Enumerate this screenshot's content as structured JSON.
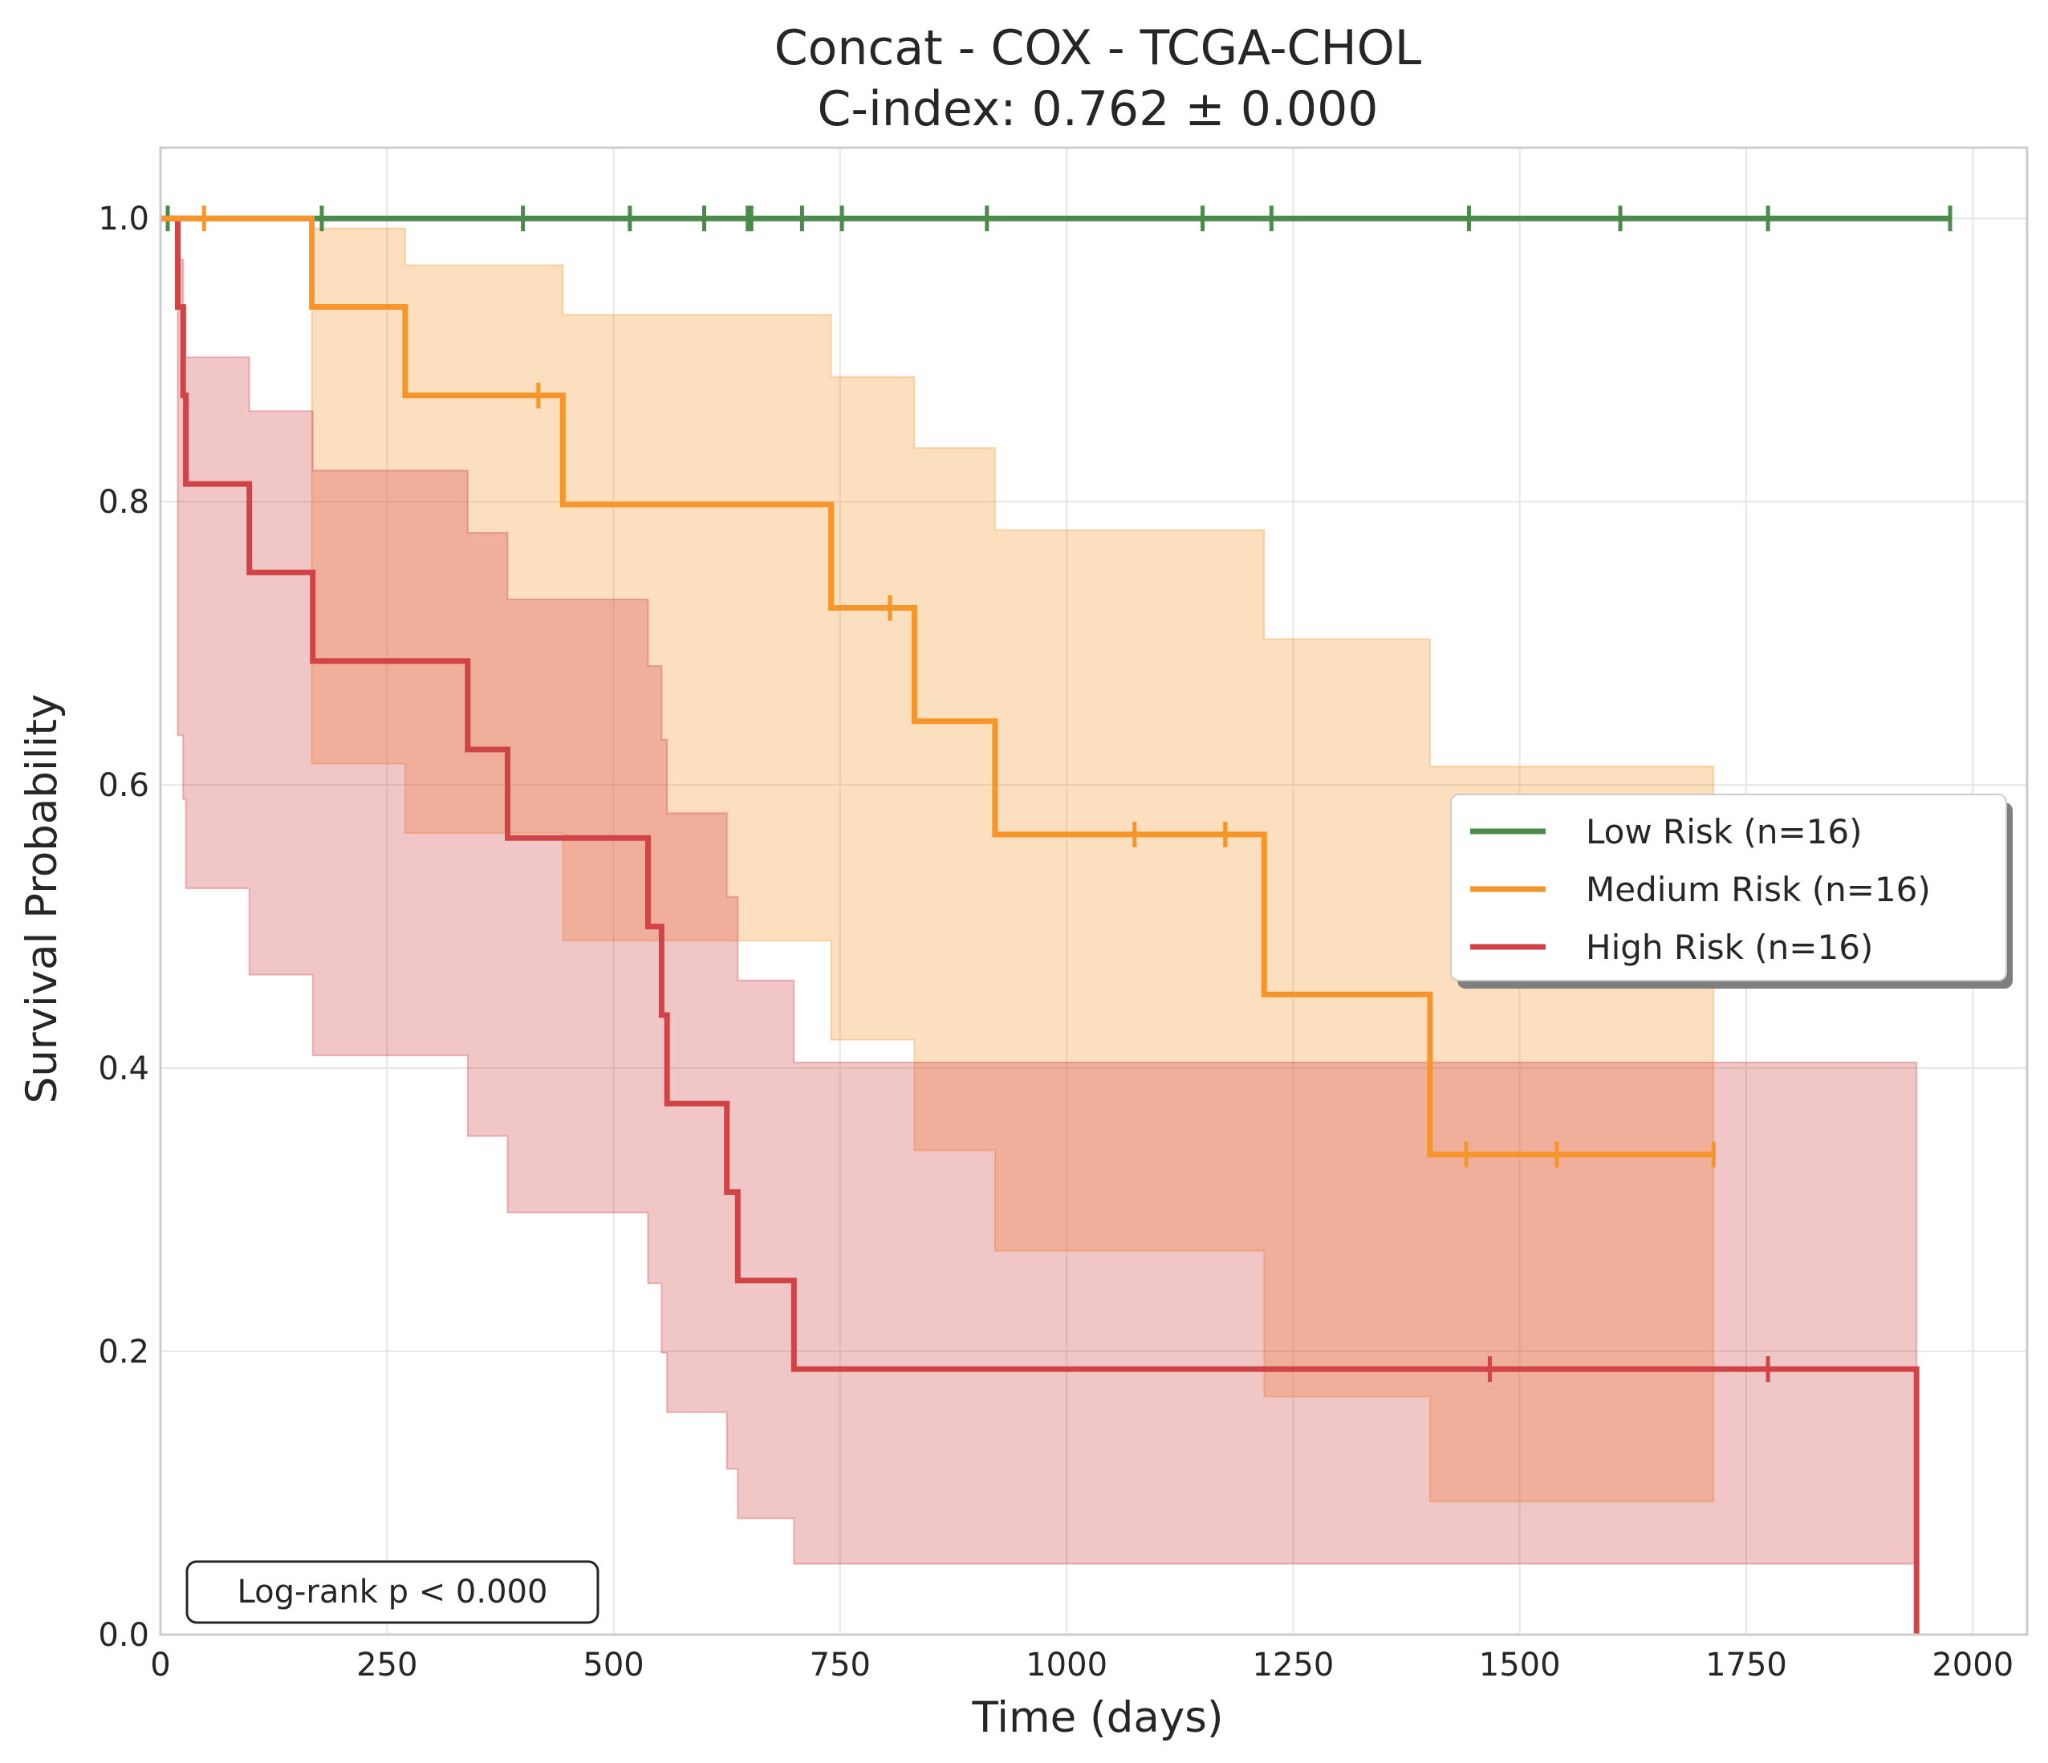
{
  "chart_data": {
    "type": "line",
    "subtype": "kaplan-meier",
    "title_lines": [
      "Concat - COX - TCGA-CHOL",
      "C-index: 0.762 ± 0.000"
    ],
    "xlabel": "Time (days)",
    "ylabel": "Survival Probability",
    "xlim": [
      0,
      2060
    ],
    "ylim": [
      0,
      1.05
    ],
    "xticks": [
      0,
      250,
      500,
      750,
      1000,
      1250,
      1500,
      1750,
      2000
    ],
    "xtick_labels": [
      "0",
      "250",
      "500",
      "750",
      "1000",
      "1250",
      "1500",
      "1750",
      "2000"
    ],
    "yticks": [
      0.0,
      0.2,
      0.4,
      0.6,
      0.8,
      1.0
    ],
    "ytick_labels": [
      "0.0",
      "0.2",
      "0.4",
      "0.6",
      "0.8",
      "1.0"
    ],
    "grid": true,
    "legend_position": "center-right",
    "annotation": "Log-rank p < 0.000",
    "series": [
      {
        "name": "Low Risk (n=16)",
        "color": "#4a8a4a",
        "steps": [
          [
            0,
            1.0
          ],
          [
            1975,
            1.0
          ]
        ],
        "censored": [
          [
            8,
            1.0
          ],
          [
            178,
            1.0
          ],
          [
            400,
            1.0
          ],
          [
            518,
            1.0
          ],
          [
            600,
            1.0
          ],
          [
            648,
            1.0
          ],
          [
            652,
            1.0
          ],
          [
            708,
            1.0
          ],
          [
            752,
            1.0
          ],
          [
            912,
            1.0
          ],
          [
            1150,
            1.0
          ],
          [
            1226,
            1.0
          ],
          [
            1444,
            1.0
          ],
          [
            1611,
            1.0
          ],
          [
            1774,
            1.0
          ],
          [
            1975,
            1.0
          ]
        ],
        "ci": []
      },
      {
        "name": "Medium Risk (n=16)",
        "color": "#f5952a",
        "steps": [
          [
            0,
            1.0
          ],
          [
            167,
            0.9375
          ],
          [
            270,
            0.875
          ],
          [
            444,
            0.798
          ],
          [
            740,
            0.725
          ],
          [
            832,
            0.645
          ],
          [
            921,
            0.565
          ],
          [
            1218,
            0.452
          ],
          [
            1401,
            0.339
          ],
          [
            1714,
            0.339
          ]
        ],
        "censored": [
          [
            48,
            1.0
          ],
          [
            417,
            0.875
          ],
          [
            805,
            0.725
          ],
          [
            1075,
            0.565
          ],
          [
            1175,
            0.565
          ],
          [
            1441,
            0.339
          ],
          [
            1541,
            0.339
          ],
          [
            1714,
            0.339
          ]
        ],
        "ci": [
          [
            0,
            1.0,
            1.0
          ],
          [
            167,
            0.615,
            0.993
          ],
          [
            270,
            0.566,
            0.967
          ],
          [
            444,
            0.49,
            0.932
          ],
          [
            740,
            0.42,
            0.888
          ],
          [
            832,
            0.342,
            0.838
          ],
          [
            921,
            0.271,
            0.78
          ],
          [
            1218,
            0.168,
            0.703
          ],
          [
            1401,
            0.094,
            0.613
          ],
          [
            1714,
            0.094,
            0.613
          ]
        ]
      },
      {
        "name": "High Risk (n=16)",
        "color": "#d04346",
        "steps": [
          [
            0,
            1.0
          ],
          [
            19,
            0.9375
          ],
          [
            25,
            0.875
          ],
          [
            28,
            0.8125
          ],
          [
            98,
            0.75
          ],
          [
            168,
            0.6875
          ],
          [
            339,
            0.625
          ],
          [
            383,
            0.5625
          ],
          [
            538,
            0.5
          ],
          [
            553,
            0.4375
          ],
          [
            559,
            0.375
          ],
          [
            625,
            0.3125
          ],
          [
            637,
            0.25
          ],
          [
            699,
            0.1875
          ],
          [
            1938,
            0.0
          ]
        ],
        "censored": [
          [
            1467,
            0.1875
          ],
          [
            1774,
            0.1875
          ]
        ],
        "ci": [
          [
            0,
            1.0,
            1.0
          ],
          [
            19,
            0.635,
            0.971
          ],
          [
            25,
            0.59,
            0.938
          ],
          [
            28,
            0.527,
            0.902
          ],
          [
            98,
            0.466,
            0.864
          ],
          [
            168,
            0.409,
            0.822
          ],
          [
            339,
            0.352,
            0.778
          ],
          [
            383,
            0.298,
            0.731
          ],
          [
            538,
            0.248,
            0.684
          ],
          [
            553,
            0.199,
            0.632
          ],
          [
            559,
            0.157,
            0.58
          ],
          [
            625,
            0.117,
            0.521
          ],
          [
            637,
            0.082,
            0.462
          ],
          [
            699,
            0.05,
            0.404
          ],
          [
            1938,
            0.05,
            0.404
          ]
        ]
      }
    ]
  }
}
